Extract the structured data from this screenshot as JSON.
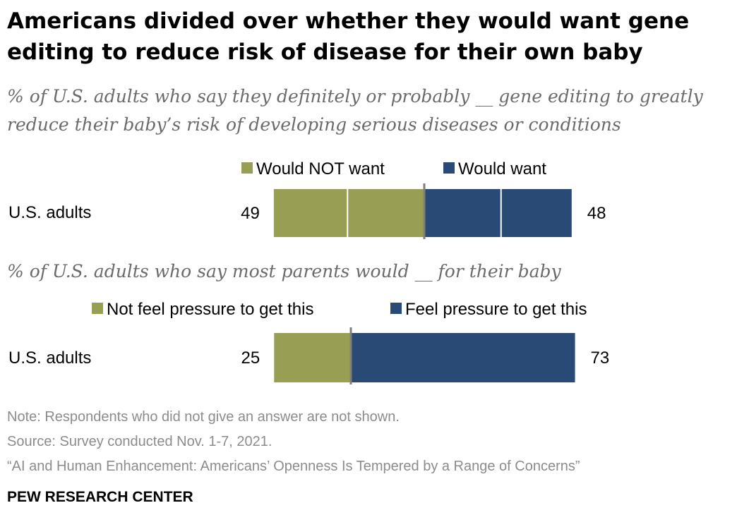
{
  "title": "Americans divided over whether they would want gene editing to reduce risk of disease for their own baby",
  "colors": {
    "olive": "#989f55",
    "navy": "#2a4a76",
    "divider": "#7f7f7f"
  },
  "chart_data": [
    {
      "type": "bar",
      "subtitle": "% of U.S. adults who say they definitely or probably __ gene editing to greatly reduce their baby’s risk of developing serious diseases or conditions",
      "categories": [
        "U.S. adults"
      ],
      "series": [
        {
          "name": "Would NOT want",
          "values": [
            49
          ],
          "color": "#989f55"
        },
        {
          "name": "Would want",
          "values": [
            48
          ],
          "color": "#2a4a76"
        }
      ],
      "gridlines": [
        25,
        50
      ],
      "legend": "top"
    },
    {
      "type": "bar",
      "subtitle": "% of U.S. adults who say most parents would __ for their baby",
      "categories": [
        "U.S. adults"
      ],
      "series": [
        {
          "name": "Not feel pressure to get this",
          "values": [
            25
          ],
          "color": "#989f55"
        },
        {
          "name": "Feel pressure to get this",
          "values": [
            73
          ],
          "color": "#2a4a76"
        }
      ],
      "gridlines": [],
      "legend": "top"
    }
  ],
  "footer": {
    "note": "Note: Respondents who did not give an answer are not shown.",
    "source": "Source: Survey conducted Nov. 1-7, 2021.",
    "report": "“AI and Human Enhancement: Americans’ Openness Is Tempered by a Range of Concerns”",
    "brand": "PEW RESEARCH CENTER"
  }
}
